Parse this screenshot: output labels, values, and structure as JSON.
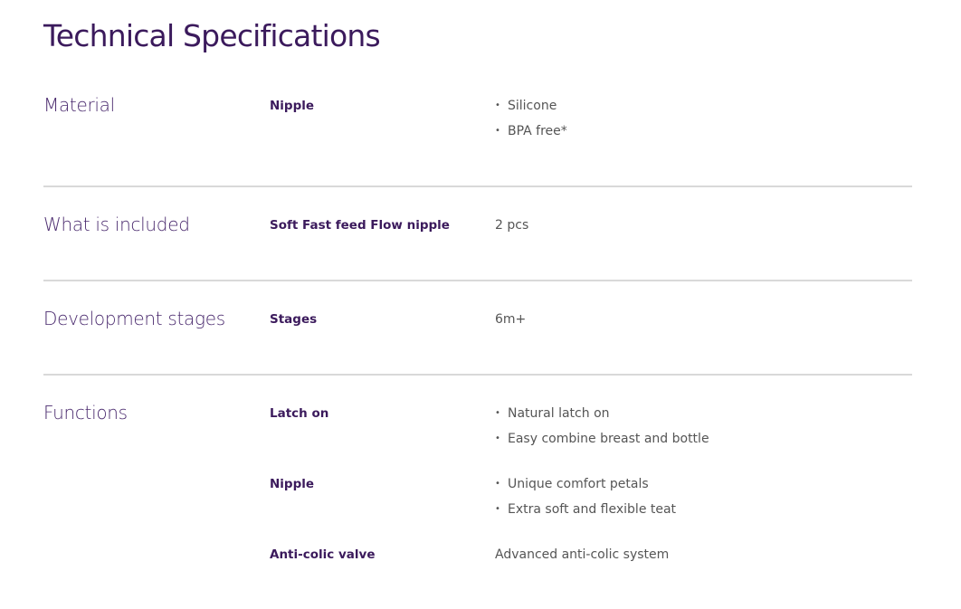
{
  "title": "Technical Specifications",
  "sections": [
    {
      "category": "Material",
      "rows": [
        {
          "key": "Nipple",
          "bullets": [
            "Silicone",
            "BPA free*"
          ]
        }
      ]
    },
    {
      "category": "What is included",
      "rows": [
        {
          "key": "Soft Fast feed Flow nipple",
          "value": "2  pcs"
        }
      ]
    },
    {
      "category": "Development stages",
      "rows": [
        {
          "key": "Stages",
          "value": "6m+"
        }
      ]
    },
    {
      "category": "Functions",
      "rows": [
        {
          "key": "Latch on",
          "bullets": [
            "Natural latch on",
            "Easy combine breast and bottle"
          ]
        },
        {
          "key": "Nipple",
          "bullets": [
            "Unique comfort petals",
            "Extra soft and flexible teat"
          ]
        },
        {
          "key": "Anti-colic valve",
          "value": "Advanced anti-colic system"
        }
      ]
    }
  ]
}
